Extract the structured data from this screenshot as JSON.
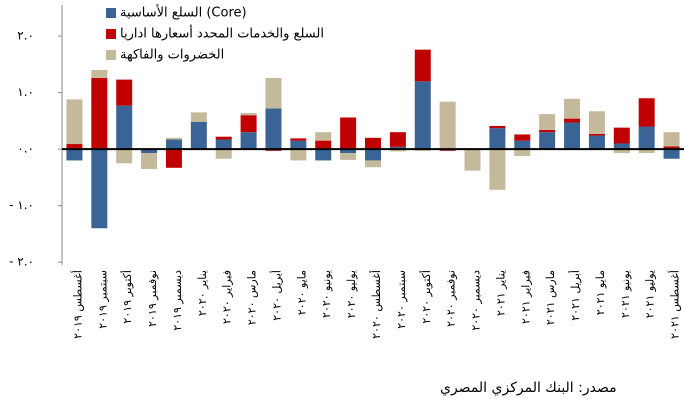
{
  "chart_data": {
    "type": "bar",
    "stacked": true,
    "categories": [
      "أغسطس ٢٠١٩",
      "سبتمبر ٢٠١٩",
      "أكتوبر ٢٠١٩",
      "نوفمبر ٢٠١٩",
      "ديسمبر ٢٠١٩",
      "يناير ٢٠٢٠",
      "فبراير ٢٠٢٠",
      "مارس ٢٠٢٠",
      "أبريل ٢٠٢٠",
      "مايو ٢٠٢٠",
      "يونيو ٢٠٢٠",
      "يوليو ٢٠٢٠",
      "أغسطس ٢٠٢٠",
      "سبتمبر ٢٠٢٠",
      "أكتوبر ٢٠٢٠",
      "نوفمبر ٢٠٢٠",
      "ديسمبر ٢٠٢٠",
      "يناير ٢٠٢١",
      "فبراير ٢٠٢١",
      "مارس ٢٠٢١",
      "أبريل ٢٠٢١",
      "مايو ٢٠٢١",
      "يونيو ٢٠٢١",
      "يوليو ٢٠٢١",
      "أغسطس ٢٠٢١"
    ],
    "series": [
      {
        "name": "السلع الأساسية (Core)",
        "color": "#3b6496",
        "values": [
          -0.2,
          -1.4,
          0.77,
          -0.07,
          0.17,
          0.48,
          0.17,
          0.3,
          0.72,
          0.15,
          -0.2,
          -0.07,
          -0.2,
          0.04,
          1.2,
          0,
          0,
          0.37,
          0.15,
          0.3,
          0.47,
          0.24,
          0.1,
          0.4,
          -0.17
        ]
      },
      {
        "name": "السلع والخدمات المحدد أسعارها اداريا",
        "color": "#c00000",
        "values": [
          0.09,
          1.26,
          0.46,
          0,
          -0.33,
          0,
          0.05,
          0.3,
          -0.03,
          0.04,
          0.15,
          0.56,
          0.2,
          0.26,
          0.56,
          -0.03,
          0,
          0.04,
          0.11,
          0.04,
          0.07,
          0.03,
          0.28,
          0.5,
          0.05
        ]
      },
      {
        "name": "الخضروات والفاكهة",
        "color": "#c4b99a",
        "values": [
          0.79,
          0.14,
          -0.25,
          -0.28,
          0.03,
          0.17,
          -0.17,
          0.04,
          0.54,
          -0.2,
          0.15,
          -0.12,
          -0.12,
          -0.04,
          -0.03,
          0.84,
          -0.38,
          -0.72,
          -0.12,
          0.28,
          0.35,
          0.4,
          -0.07,
          -0.07,
          0.25
        ]
      }
    ],
    "ylim": [
      -2.05,
      2.55
    ],
    "yticks": [
      {
        "value": 2,
        "label": "٢.٠"
      },
      {
        "value": 1,
        "label": "١.٠"
      },
      {
        "value": 0,
        "label": "٠.٠"
      },
      {
        "value": -1,
        "label": "- ١.٠"
      },
      {
        "value": -2,
        "label": "- ٢.٠"
      }
    ],
    "source": "مصدر: البنك المركزي المصري"
  }
}
